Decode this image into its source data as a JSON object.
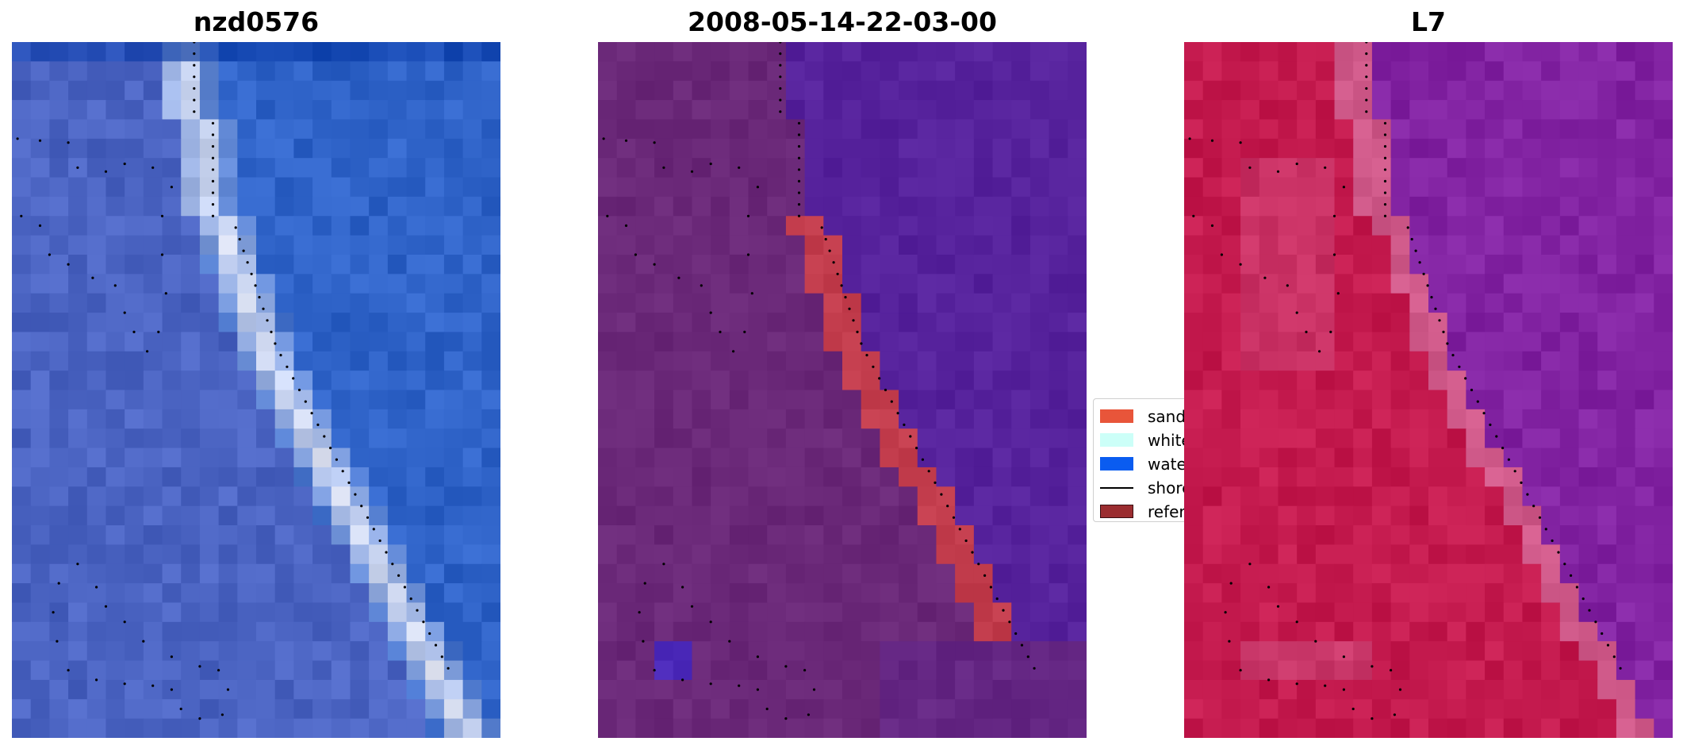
{
  "titles": {
    "image": "nzd0576",
    "date": "2008-05-14-22-03-00",
    "satellite": "L7"
  },
  "legend": {
    "items": [
      {
        "label": "sand",
        "color": "#e8553a",
        "kind": "patch"
      },
      {
        "label": "white-water",
        "color": "#ccfff8",
        "kind": "patch"
      },
      {
        "label": "water",
        "color": "#0a5cf0",
        "kind": "patch"
      },
      {
        "label": "shoreline",
        "color": "#000000",
        "kind": "line"
      },
      {
        "label": "reference",
        "color": "#9b2d30",
        "kind": "patch"
      }
    ]
  },
  "colors": {
    "rgb_water": "#2f63c8",
    "rgb_land": "#4b64c2",
    "rgb_surf": "#e4e8f6",
    "class_land": "#6a2878",
    "class_water": "#56229c",
    "class_sand": "#c23c4c",
    "class_bluepatch": "#4a28b8",
    "mndwi_land": "#c41a4e",
    "mndwi_water": "#8223a2",
    "mndwi_mid": "#d05a8a",
    "shoreline_dots": "#000000"
  }
}
